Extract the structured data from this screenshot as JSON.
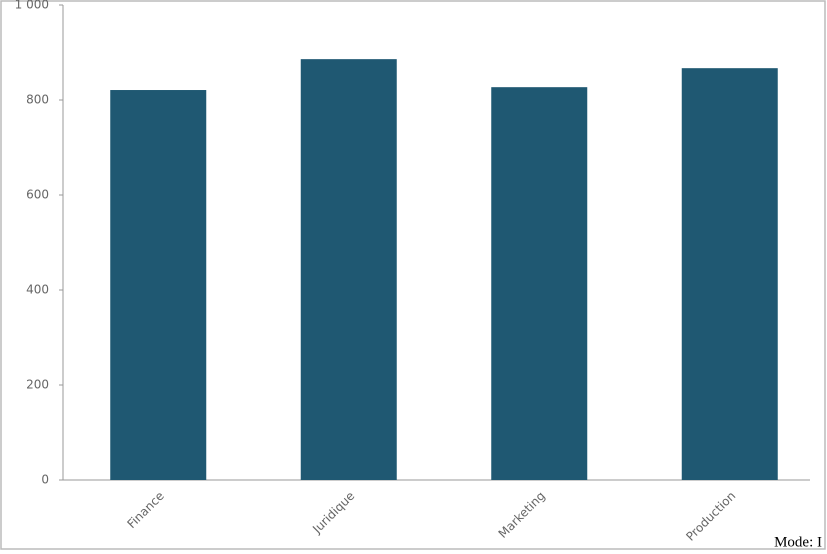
{
  "chart_data": {
    "type": "bar",
    "categories": [
      "Finance",
      "Juridique",
      "Marketing",
      "Production"
    ],
    "values": [
      821,
      886,
      827,
      867
    ],
    "color": "#1f5872",
    "ylim": [
      0,
      1000
    ],
    "yticks": [
      0,
      200,
      400,
      600,
      800,
      {
        "value": 1000,
        "label": "1 000"
      }
    ],
    "grid": false
  },
  "mode_label": "Mode: I"
}
